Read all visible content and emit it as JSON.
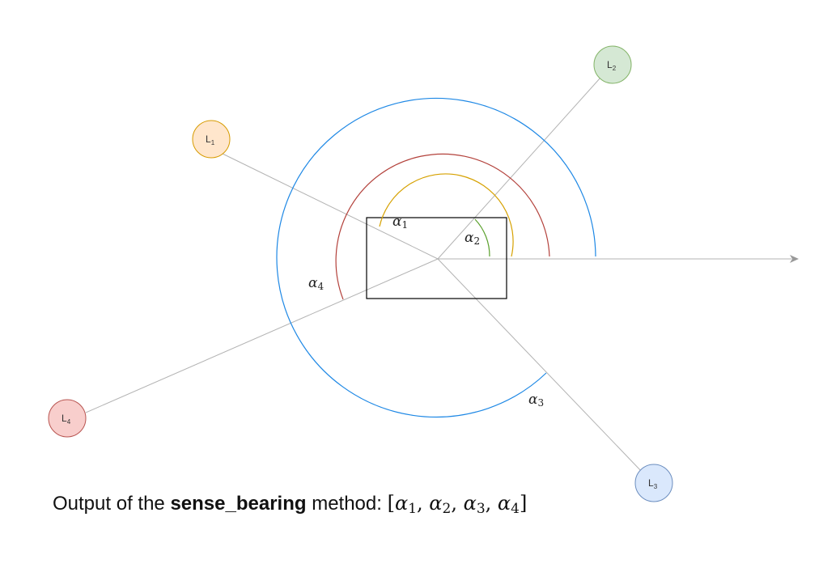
{
  "landmarks": [
    {
      "base": "L",
      "sub": "1",
      "fill": "#ffe6cc",
      "stroke": "#d79b00"
    },
    {
      "base": "L",
      "sub": "2",
      "fill": "#d5e8d4",
      "stroke": "#82b366"
    },
    {
      "base": "L",
      "sub": "3",
      "fill": "#dae8fc",
      "stroke": "#6c8ebf"
    },
    {
      "base": "L",
      "sub": "4",
      "fill": "#f8cecc",
      "stroke": "#b85450"
    }
  ],
  "angles": [
    {
      "symbol": "α",
      "sub": "1",
      "color": "#d6a100"
    },
    {
      "symbol": "α",
      "sub": "2",
      "color": "#5aa02c"
    },
    {
      "symbol": "α",
      "sub": "3",
      "color": "#1e88e5"
    },
    {
      "symbol": "α",
      "sub": "4",
      "color": "#b3413b"
    }
  ],
  "caption": {
    "prefix": "Output of the ",
    "method": "sense_bearing",
    "suffix": " method: ",
    "open": "[",
    "sep": ", ",
    "close": "]",
    "symbol": "α",
    "subs": [
      "1",
      "2",
      "3",
      "4"
    ]
  }
}
